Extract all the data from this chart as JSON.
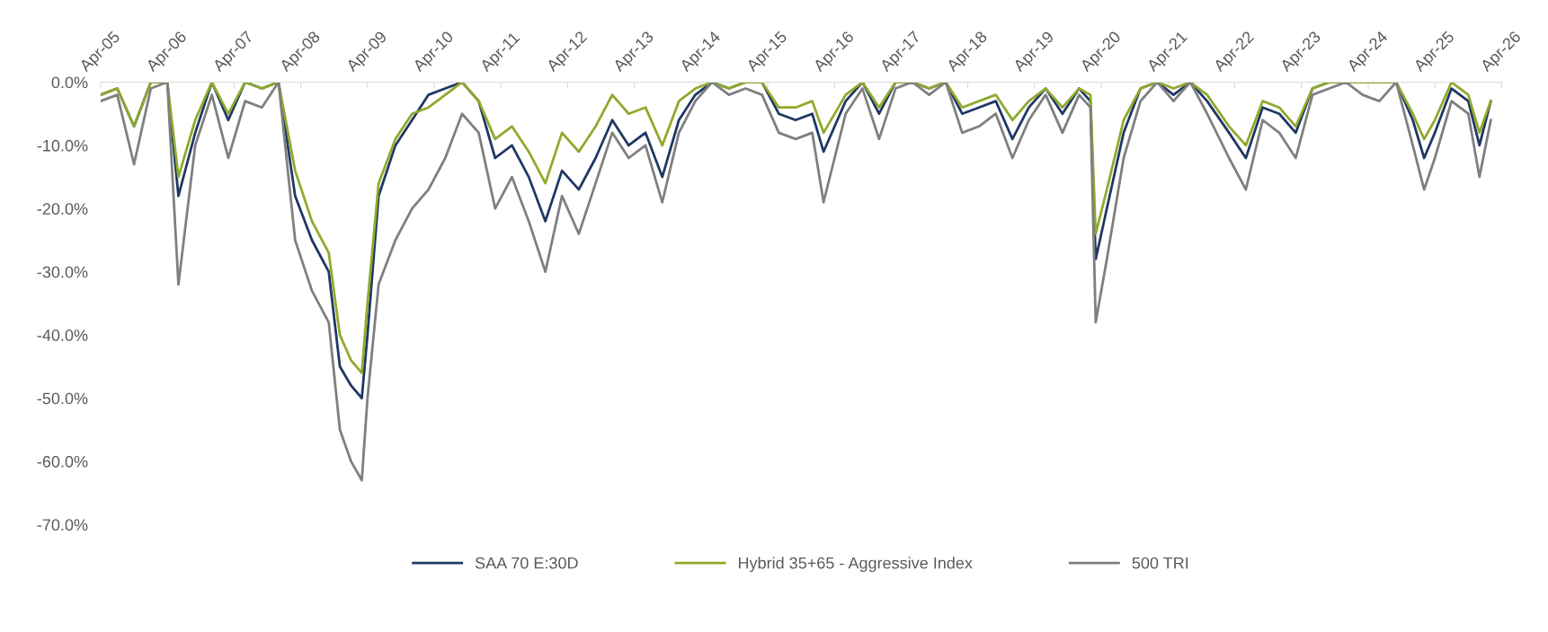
{
  "chart_data": {
    "type": "line",
    "x": [
      "2005-04",
      "2005-07",
      "2005-10",
      "2006-01",
      "2006-04",
      "2006-06",
      "2006-09",
      "2006-12",
      "2007-03",
      "2007-06",
      "2007-09",
      "2007-12",
      "2008-03",
      "2008-06",
      "2008-09",
      "2008-11",
      "2009-01",
      "2009-03",
      "2009-04",
      "2009-06",
      "2009-09",
      "2009-12",
      "2010-03",
      "2010-06",
      "2010-09",
      "2010-12",
      "2011-03",
      "2011-06",
      "2011-09",
      "2011-12",
      "2012-03",
      "2012-06",
      "2012-09",
      "2012-12",
      "2013-03",
      "2013-06",
      "2013-09",
      "2013-12",
      "2014-03",
      "2014-06",
      "2014-09",
      "2014-12",
      "2015-03",
      "2015-06",
      "2015-09",
      "2015-12",
      "2016-02",
      "2016-06",
      "2016-09",
      "2016-12",
      "2017-03",
      "2017-06",
      "2017-09",
      "2017-12",
      "2018-03",
      "2018-06",
      "2018-09",
      "2018-12",
      "2019-03",
      "2019-06",
      "2019-09",
      "2019-12",
      "2020-02",
      "2020-03",
      "2020-05",
      "2020-08",
      "2020-11",
      "2021-02",
      "2021-05",
      "2021-08",
      "2021-11",
      "2022-03",
      "2022-06",
      "2022-09",
      "2022-12",
      "2023-03",
      "2023-06",
      "2023-09",
      "2023-12",
      "2024-03",
      "2024-06",
      "2024-09",
      "2024-12",
      "2025-02",
      "2025-04",
      "2025-07",
      "2025-10",
      "2025-12",
      "2026-02"
    ],
    "series": [
      {
        "name": "SAA 70 E:30D",
        "color": "#1f3864",
        "values": [
          -2,
          -1,
          -7,
          0,
          0,
          -18,
          -8,
          0,
          -6,
          0,
          -1,
          0,
          -18,
          -25,
          -30,
          -45,
          -48,
          -50,
          -40,
          -18,
          -10,
          -6,
          -2,
          -1,
          0,
          -3,
          -12,
          -10,
          -15,
          -22,
          -14,
          -17,
          -12,
          -6,
          -10,
          -8,
          -15,
          -6,
          -2,
          0,
          -1,
          0,
          0,
          -5,
          -6,
          -5,
          -11,
          -3,
          0,
          -5,
          0,
          0,
          -1,
          0,
          -5,
          -4,
          -3,
          -9,
          -4,
          -1,
          -5,
          -1,
          -3,
          -28,
          -20,
          -8,
          -1,
          0,
          -2,
          0,
          -3,
          -8,
          -12,
          -4,
          -5,
          -8,
          -1,
          0,
          0,
          0,
          0,
          0,
          -6,
          -12,
          -8,
          -1,
          -3,
          -10,
          -3
        ]
      },
      {
        "name": "Hybrid 35+65 - Aggressive Index",
        "color": "#8faa2c",
        "values": [
          -2,
          -1,
          -7,
          0,
          0,
          -15,
          -6,
          0,
          -5,
          0,
          -1,
          0,
          -14,
          -22,
          -27,
          -40,
          -44,
          -46,
          -35,
          -16,
          -9,
          -5,
          -4,
          -2,
          0,
          -3,
          -9,
          -7,
          -11,
          -16,
          -8,
          -11,
          -7,
          -2,
          -5,
          -4,
          -10,
          -3,
          -1,
          0,
          -1,
          0,
          0,
          -4,
          -4,
          -3,
          -8,
          -2,
          0,
          -4,
          0,
          0,
          -1,
          0,
          -4,
          -3,
          -2,
          -6,
          -3,
          -1,
          -4,
          -1,
          -2,
          -24,
          -17,
          -6,
          -1,
          0,
          -1,
          0,
          -2,
          -7,
          -10,
          -3,
          -4,
          -7,
          -1,
          0,
          0,
          0,
          0,
          0,
          -5,
          -9,
          -6,
          0,
          -2,
          -8,
          -3
        ]
      },
      {
        "name": "500 TRI",
        "color": "#7f7f7f",
        "values": [
          -3,
          -2,
          -13,
          -1,
          0,
          -32,
          -10,
          -2,
          -12,
          -3,
          -4,
          0,
          -25,
          -33,
          -38,
          -55,
          -60,
          -63,
          -50,
          -32,
          -25,
          -20,
          -17,
          -12,
          -5,
          -8,
          -20,
          -15,
          -22,
          -30,
          -18,
          -24,
          -16,
          -8,
          -12,
          -10,
          -19,
          -8,
          -3,
          0,
          -2,
          -1,
          -2,
          -8,
          -9,
          -8,
          -19,
          -5,
          -1,
          -9,
          -1,
          0,
          -2,
          0,
          -8,
          -7,
          -5,
          -12,
          -6,
          -2,
          -8,
          -2,
          -4,
          -38,
          -28,
          -12,
          -3,
          0,
          -3,
          0,
          -5,
          -12,
          -17,
          -6,
          -8,
          -12,
          -2,
          -1,
          0,
          -2,
          -3,
          0,
          -10,
          -17,
          -12,
          -3,
          -5,
          -15,
          -6
        ]
      }
    ],
    "xlim": [
      "2005-04-01",
      "2026-04-01"
    ],
    "xticks": [
      {
        "value": "2005-04-01",
        "label": "Apr-05"
      },
      {
        "value": "2006-04-01",
        "label": "Apr-06"
      },
      {
        "value": "2007-04-01",
        "label": "Apr-07"
      },
      {
        "value": "2008-04-01",
        "label": "Apr-08"
      },
      {
        "value": "2009-04-01",
        "label": "Apr-09"
      },
      {
        "value": "2010-04-01",
        "label": "Apr-10"
      },
      {
        "value": "2011-04-01",
        "label": "Apr-11"
      },
      {
        "value": "2012-04-01",
        "label": "Apr-12"
      },
      {
        "value": "2013-04-01",
        "label": "Apr-13"
      },
      {
        "value": "2014-04-01",
        "label": "Apr-14"
      },
      {
        "value": "2015-04-01",
        "label": "Apr-15"
      },
      {
        "value": "2016-04-01",
        "label": "Apr-16"
      },
      {
        "value": "2017-04-01",
        "label": "Apr-17"
      },
      {
        "value": "2018-04-01",
        "label": "Apr-18"
      },
      {
        "value": "2019-04-01",
        "label": "Apr-19"
      },
      {
        "value": "2020-04-01",
        "label": "Apr-20"
      },
      {
        "value": "2021-04-01",
        "label": "Apr-21"
      },
      {
        "value": "2022-04-01",
        "label": "Apr-22"
      },
      {
        "value": "2023-04-01",
        "label": "Apr-23"
      },
      {
        "value": "2024-04-01",
        "label": "Apr-24"
      },
      {
        "value": "2025-04-01",
        "label": "Apr-25"
      },
      {
        "value": "2026-04-01",
        "label": "Apr-26"
      }
    ],
    "ylim": [
      -70,
      0
    ],
    "yticks": [
      {
        "value": 0,
        "label": "0.0%"
      },
      {
        "value": -10,
        "label": "-10.0%"
      },
      {
        "value": -20,
        "label": "-20.0%"
      },
      {
        "value": -30,
        "label": "-30.0%"
      },
      {
        "value": -40,
        "label": "-40.0%"
      },
      {
        "value": -50,
        "label": "-50.0%"
      },
      {
        "value": -60,
        "label": "-60.0%"
      },
      {
        "value": -70,
        "label": "-70.0%"
      }
    ],
    "grid": false,
    "legend": "bottom",
    "marker": "none",
    "line_style": "solid"
  }
}
